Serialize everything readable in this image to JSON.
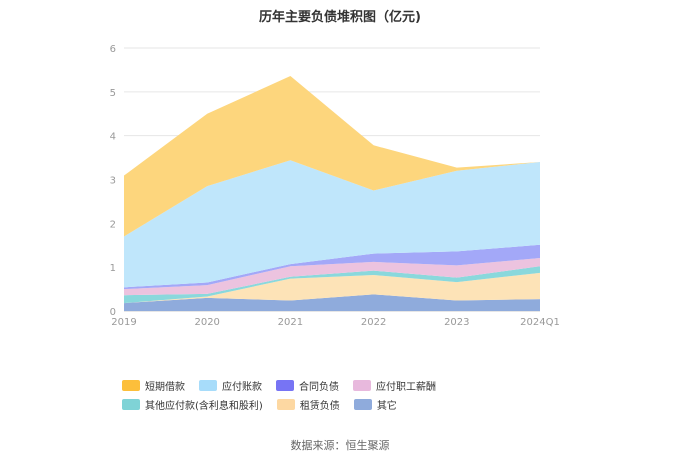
{
  "chart_data": {
    "type": "area",
    "stacked": true,
    "title": "历年主要负债堆积图（亿元)",
    "x": [
      "2019",
      "2020",
      "2021",
      "2022",
      "2023",
      "2024Q1"
    ],
    "ylim": [
      0,
      6
    ],
    "yticks": [
      "0",
      "1",
      "2",
      "3",
      "4",
      "5",
      "6"
    ],
    "grid": true,
    "legend_position": "bottom",
    "series": [
      {
        "name": "其它",
        "color": "#8fabdc",
        "values": [
          0.18,
          0.3,
          0.24,
          0.38,
          0.24,
          0.27
        ]
      },
      {
        "name": "租赁负债",
        "color": "#fde3b7",
        "values": [
          0.0,
          0.03,
          0.5,
          0.44,
          0.42,
          0.6
        ]
      },
      {
        "name": "其他应付款(含利息和股利)",
        "color": "#8ad8dc",
        "values": [
          0.18,
          0.06,
          0.04,
          0.1,
          0.1,
          0.15
        ]
      },
      {
        "name": "应付职工薪酬",
        "color": "#ecc3df",
        "values": [
          0.14,
          0.2,
          0.24,
          0.2,
          0.28,
          0.19
        ]
      },
      {
        "name": "合同负债",
        "color": "#a3a8f8",
        "values": [
          0.04,
          0.06,
          0.05,
          0.19,
          0.32,
          0.3
        ]
      },
      {
        "name": "应付账款",
        "color": "#bfe6fb",
        "values": [
          1.16,
          2.2,
          2.37,
          1.44,
          1.84,
          1.89
        ]
      },
      {
        "name": "短期借款",
        "color": "#fdd67d",
        "values": [
          1.39,
          1.65,
          1.92,
          1.03,
          0.07,
          0.0
        ]
      }
    ],
    "legend": [
      {
        "name": "短期借款",
        "color": "#fcbf3b"
      },
      {
        "name": "应付账款",
        "color": "#a7dcfa"
      },
      {
        "name": "合同负债",
        "color": "#7774f4"
      },
      {
        "name": "应付职工薪酬",
        "color": "#e8b9dd"
      },
      {
        "name": "其他应付款(含利息和股利)",
        "color": "#7fd3d6"
      },
      {
        "name": "租赁负债",
        "color": "#fdd8a2"
      },
      {
        "name": "其它",
        "color": "#8fabdc"
      }
    ]
  },
  "source": "数据来源：恒生聚源"
}
